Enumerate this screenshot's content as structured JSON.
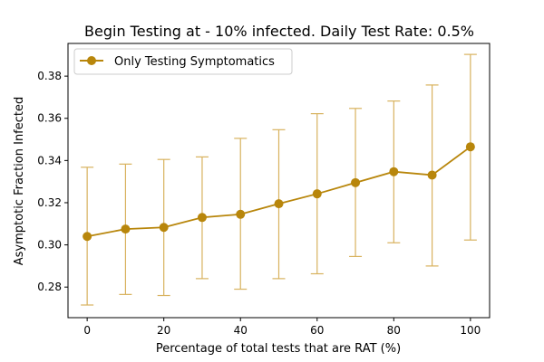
{
  "chart_data": {
    "type": "line",
    "title": "Begin Testing at - 10% infected. Daily Test Rate: 0.5%",
    "xlabel": "Percentage of total tests that are RAT (%)",
    "ylabel": "Asymptotic Fraction Infected",
    "xlim": [
      -5,
      105
    ],
    "ylim": [
      0.2655,
      0.3955
    ],
    "xticks": [
      0,
      20,
      40,
      60,
      80,
      100
    ],
    "yticks": [
      0.28,
      0.3,
      0.32,
      0.34,
      0.36,
      0.38
    ],
    "xtick_labels": [
      "0",
      "20",
      "40",
      "60",
      "80",
      "100"
    ],
    "ytick_labels": [
      "0.28",
      "0.30",
      "0.32",
      "0.34",
      "0.36",
      "0.38"
    ],
    "grid": false,
    "legend_position": "upper-left",
    "series": [
      {
        "name": "Only Testing Symptomatics",
        "color": "#b8860b",
        "errorbar_color": "#d8b25e",
        "marker": "circle",
        "x": [
          0,
          10,
          20,
          30,
          40,
          50,
          60,
          70,
          80,
          90,
          100
        ],
        "y": [
          0.304,
          0.3075,
          0.3083,
          0.313,
          0.3145,
          0.3195,
          0.3242,
          0.3295,
          0.3347,
          0.3331,
          0.3465
        ],
        "err_low": [
          0.2715,
          0.2765,
          0.276,
          0.284,
          0.279,
          0.284,
          0.2863,
          0.2945,
          0.301,
          0.29,
          0.3023
        ],
        "err_high": [
          0.3368,
          0.3383,
          0.3405,
          0.3417,
          0.3505,
          0.3546,
          0.3622,
          0.3647,
          0.3682,
          0.3758,
          0.3903
        ]
      }
    ]
  }
}
